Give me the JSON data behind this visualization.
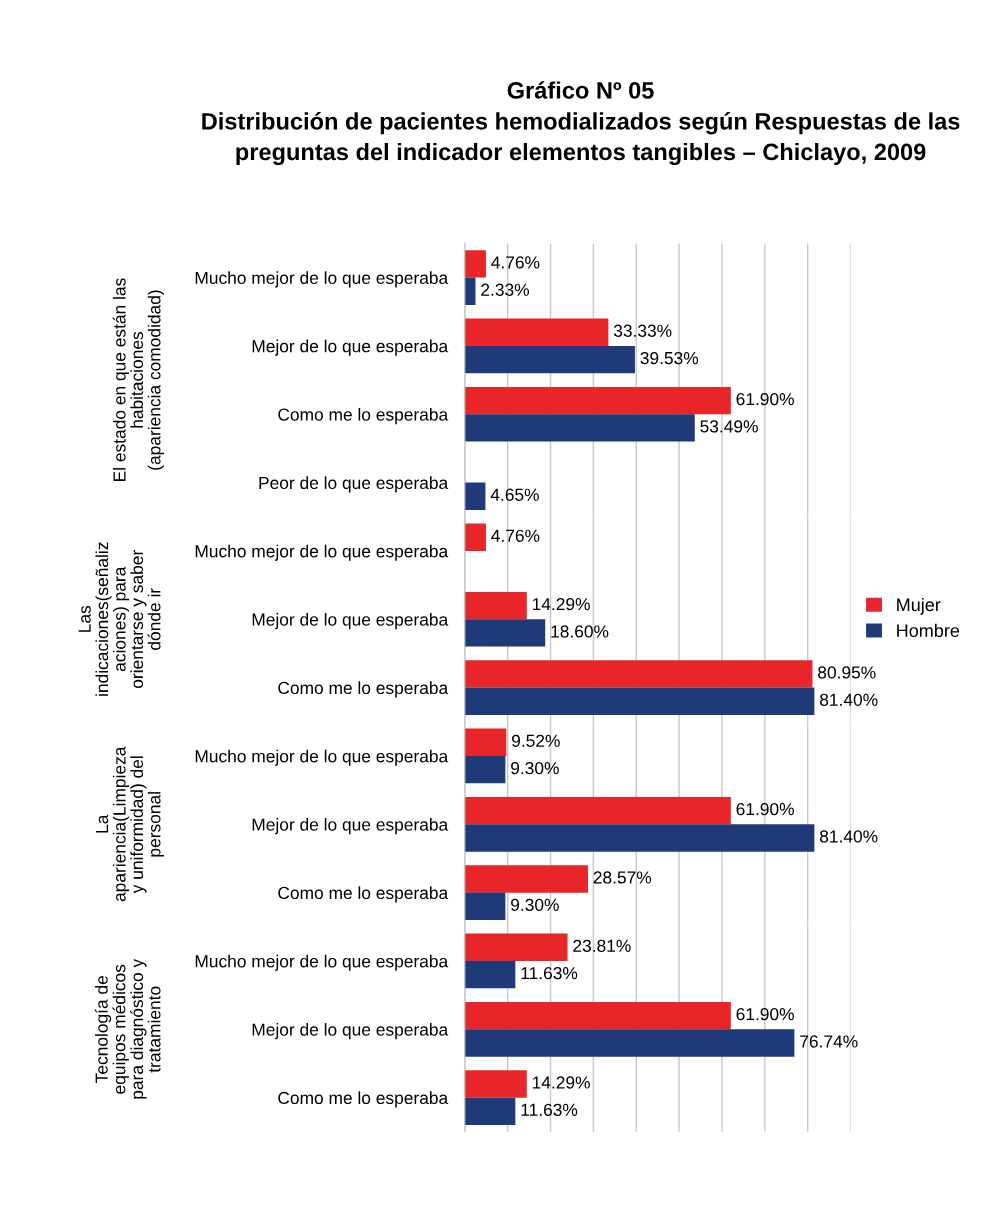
{
  "chart_data": [
    {
      "type": "bar",
      "orientation": "horizontal",
      "title": "Gráfico Nº 05\nDistribución de pacientes hemodializados según Respuestas de las\npreguntas del indicador elementos tangibles – Chiclayo, 2009",
      "ylabel": "El estado en que están las\nhabitaciones\n(apariencia comodidad)",
      "categories": [
        "Mucho mejor de lo que esperaba",
        "Mejor de lo que esperaba",
        "Como me lo esperaba",
        "Peor de lo que esperaba"
      ],
      "xlim": [
        0,
        90
      ],
      "xticks": [
        {
          "value": 0,
          "label": null
        },
        {
          "value": 10,
          "label": null
        },
        {
          "value": 20,
          "label": null
        },
        {
          "value": 30,
          "label": null
        },
        {
          "value": 40,
          "label": null
        },
        {
          "value": 50,
          "label": null
        },
        {
          "value": 60,
          "label": null
        },
        {
          "value": 70,
          "label": null
        },
        {
          "value": 80,
          "label": null
        },
        {
          "value": 90,
          "label": null
        }
      ],
      "tick_labels": "y",
      "grid": "x",
      "legend": false,
      "series": [
        {
          "color": "#e8262a",
          "values": [
            4.76,
            33.33,
            61.9,
            null
          ],
          "value_labels": [
            "4.76%",
            "33.33%",
            "61.90%",
            null
          ]
        },
        {
          "color": "#1f3a78",
          "values": [
            2.33,
            39.53,
            53.49,
            4.65
          ],
          "value_labels": [
            "2.33%",
            "39.53%",
            "53.49%",
            "4.65%"
          ]
        }
      ]
    },
    {
      "type": "bar",
      "orientation": "horizontal",
      "ylabel": "Las\nindicaciones(señaliz\naciones) para\norientarse y saber\ndónde ir",
      "categories": [
        "Mucho mejor de lo que esperaba",
        "Mejor de lo que esperaba",
        "Como me lo esperaba"
      ],
      "xlim": [
        0,
        90
      ],
      "xticks": [
        {
          "value": 0,
          "label": null
        },
        {
          "value": 10,
          "label": null
        },
        {
          "value": 20,
          "label": null
        },
        {
          "value": 30,
          "label": null
        },
        {
          "value": 40,
          "label": null
        },
        {
          "value": 50,
          "label": null
        },
        {
          "value": 60,
          "label": null
        },
        {
          "value": 70,
          "label": null
        },
        {
          "value": 80,
          "label": null
        },
        {
          "value": 90,
          "label": null
        }
      ],
      "tick_labels": "y",
      "grid": "x",
      "legend": "right",
      "series": [
        {
          "name": "Mujer",
          "color": "#e8262a",
          "values": [
            4.76,
            14.29,
            80.95
          ],
          "value_labels": [
            "4.76%",
            "14.29%",
            "80.95%"
          ]
        },
        {
          "name": "Hombre",
          "color": "#1f3a78",
          "values": [
            null,
            18.6,
            81.4
          ],
          "value_labels": [
            null,
            "18.60%",
            "81.40%"
          ]
        }
      ]
    },
    {
      "type": "bar",
      "orientation": "horizontal",
      "ylabel": "La\napariencia(Limpieza\ny uniformidad) del\npersonal",
      "categories": [
        "Mucho mejor de lo que esperaba",
        "Mejor de lo que esperaba",
        "Como me lo esperaba"
      ],
      "xlim": [
        0,
        90
      ],
      "xticks": [
        {
          "value": 0,
          "label": null
        },
        {
          "value": 10,
          "label": null
        },
        {
          "value": 20,
          "label": null
        },
        {
          "value": 30,
          "label": null
        },
        {
          "value": 40,
          "label": null
        },
        {
          "value": 50,
          "label": null
        },
        {
          "value": 60,
          "label": null
        },
        {
          "value": 70,
          "label": null
        },
        {
          "value": 80,
          "label": null
        },
        {
          "value": 90,
          "label": null
        }
      ],
      "tick_labels": "y",
      "grid": "x",
      "legend": false,
      "series": [
        {
          "color": "#e8262a",
          "values": [
            9.52,
            61.9,
            28.57
          ],
          "value_labels": [
            "9.52%",
            "61.90%",
            "28.57%"
          ]
        },
        {
          "color": "#1f3a78",
          "values": [
            9.3,
            81.4,
            9.3
          ],
          "value_labels": [
            "9.30%",
            "81.40%",
            "9.30%"
          ]
        }
      ]
    },
    {
      "type": "bar",
      "orientation": "horizontal",
      "ylabel": "Tecnología de\nequipos médicos\npara diagnóstico y\ntratamiento",
      "categories": [
        "Mucho mejor de lo que esperaba",
        "Mejor de lo que esperaba",
        "Como me lo esperaba"
      ],
      "xlim": [
        0,
        90
      ],
      "xticks": [
        {
          "value": 0,
          "label": null
        },
        {
          "value": 10,
          "label": null
        },
        {
          "value": 20,
          "label": null
        },
        {
          "value": 30,
          "label": null
        },
        {
          "value": 40,
          "label": null
        },
        {
          "value": 50,
          "label": null
        },
        {
          "value": 60,
          "label": null
        },
        {
          "value": 70,
          "label": null
        },
        {
          "value": 80,
          "label": null
        },
        {
          "value": 90,
          "label": null
        }
      ],
      "tick_labels": "y",
      "grid": "x",
      "legend": false,
      "series": [
        {
          "color": "#e8262a",
          "values": [
            23.81,
            61.9,
            14.29
          ],
          "value_labels": [
            "23.81%",
            "61.90%",
            "14.29%"
          ]
        },
        {
          "color": "#1f3a78",
          "values": [
            11.63,
            76.74,
            11.63
          ],
          "value_labels": [
            "11.63%",
            "76.74%",
            "11.63%"
          ]
        }
      ]
    }
  ]
}
